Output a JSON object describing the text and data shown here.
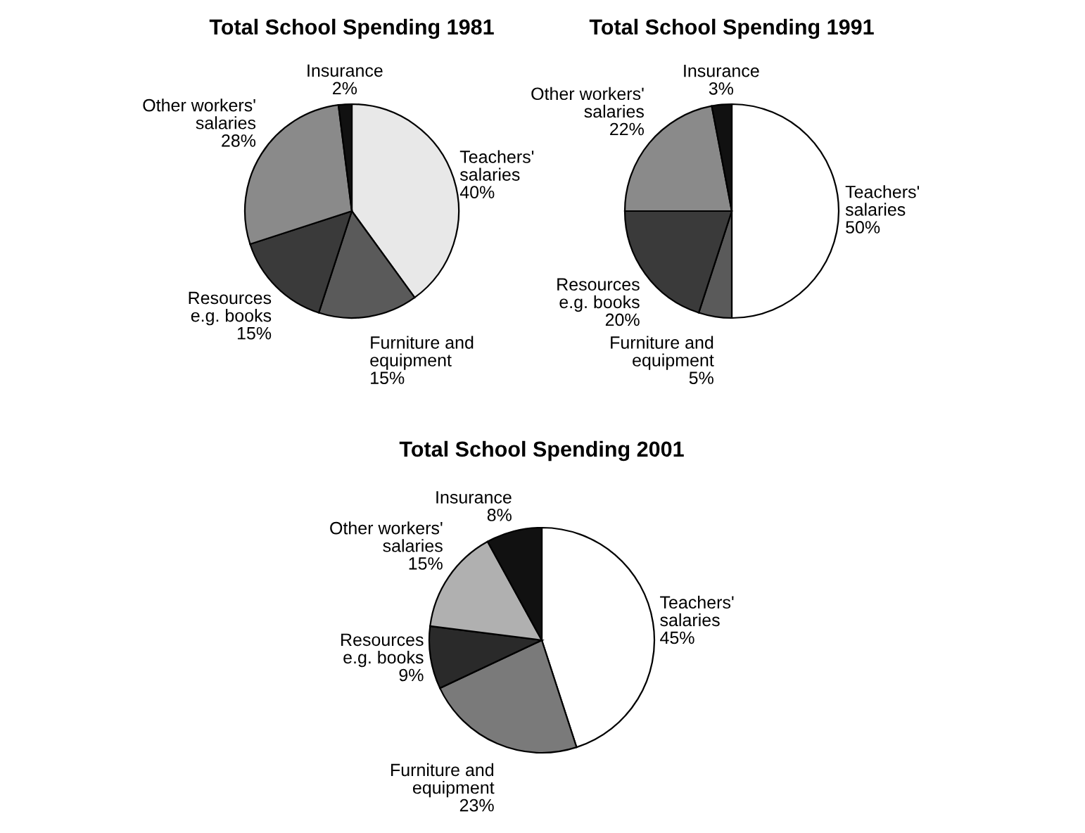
{
  "chart_data": [
    {
      "type": "pie",
      "title": "Total School Spending 1981",
      "categories": [
        "Teachers'\nsalaries",
        "Furniture and\nequipment",
        "Resources\ne.g. books",
        "Other workers'\nsalaries",
        "Insurance"
      ],
      "values": [
        40,
        15,
        15,
        28,
        2
      ],
      "value_labels": [
        "40%",
        "15%",
        "15%",
        "28%",
        "2%"
      ],
      "colors": [
        "#e8e8e8",
        "#5a5a5a",
        "#3a3a3a",
        "#8a8a8a",
        "#111111"
      ]
    },
    {
      "type": "pie",
      "title": "Total School Spending 1991",
      "categories": [
        "Teachers'\nsalaries",
        "Furniture and\nequipment",
        "Resources\ne.g. books",
        "Other workers'\nsalaries",
        "Insurance"
      ],
      "values": [
        50,
        5,
        20,
        22,
        3
      ],
      "value_labels": [
        "50%",
        "5%",
        "20%",
        "22%",
        "3%"
      ],
      "colors": [
        "#ffffff",
        "#5a5a5a",
        "#3a3a3a",
        "#8a8a8a",
        "#111111"
      ]
    },
    {
      "type": "pie",
      "title": "Total School Spending 2001",
      "categories": [
        "Teachers'\nsalaries",
        "Furniture and\nequipment",
        "Resources\ne.g. books",
        "Other workers'\nsalaries",
        "Insurance"
      ],
      "values": [
        45,
        23,
        9,
        15,
        8
      ],
      "value_labels": [
        "45%",
        "23%",
        "9%",
        "15%",
        "8%"
      ],
      "colors": [
        "#ffffff",
        "#7a7a7a",
        "#2a2a2a",
        "#b0b0b0",
        "#111111"
      ]
    }
  ]
}
